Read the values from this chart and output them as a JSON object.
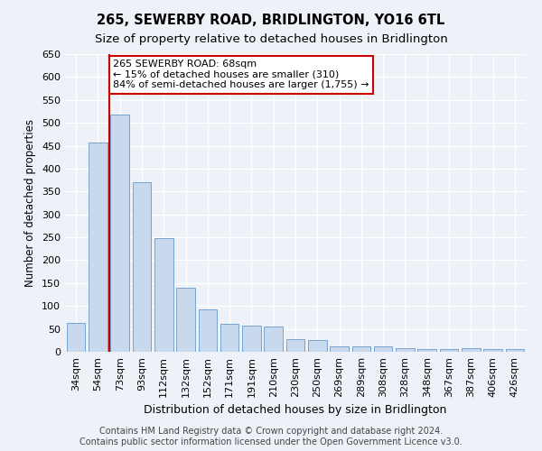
{
  "title": "265, SEWERBY ROAD, BRIDLINGTON, YO16 6TL",
  "subtitle": "Size of property relative to detached houses in Bridlington",
  "xlabel": "Distribution of detached houses by size in Bridlington",
  "ylabel": "Number of detached properties",
  "categories": [
    "34sqm",
    "54sqm",
    "73sqm",
    "93sqm",
    "112sqm",
    "132sqm",
    "152sqm",
    "171sqm",
    "191sqm",
    "210sqm",
    "230sqm",
    "250sqm",
    "269sqm",
    "289sqm",
    "308sqm",
    "328sqm",
    "348sqm",
    "367sqm",
    "387sqm",
    "406sqm",
    "426sqm"
  ],
  "values": [
    63,
    457,
    519,
    370,
    248,
    140,
    93,
    62,
    58,
    55,
    27,
    26,
    11,
    12,
    11,
    8,
    6,
    5,
    7,
    5,
    5
  ],
  "bar_color": "#c8d9ed",
  "bar_edge_color": "#6699cc",
  "annotation_text1": "265 SEWERBY ROAD: 68sqm",
  "annotation_text2": "← 15% of detached houses are smaller (310)",
  "annotation_text3": "84% of semi-detached houses are larger (1,755) →",
  "annotation_box_facecolor": "#ffffff",
  "annotation_box_edgecolor": "#cc0000",
  "vline_color": "#cc0000",
  "vline_x": 1.5,
  "ylim": [
    0,
    650
  ],
  "yticks": [
    0,
    50,
    100,
    150,
    200,
    250,
    300,
    350,
    400,
    450,
    500,
    550,
    600,
    650
  ],
  "background_color": "#eef2f8",
  "footer1": "Contains HM Land Registry data © Crown copyright and database right 2024.",
  "footer2": "Contains public sector information licensed under the Open Government Licence v3.0.",
  "title_fontsize": 10.5,
  "subtitle_fontsize": 9.5,
  "xlabel_fontsize": 9,
  "ylabel_fontsize": 8.5,
  "tick_fontsize": 8,
  "annotation_fontsize": 8,
  "footer_fontsize": 7
}
